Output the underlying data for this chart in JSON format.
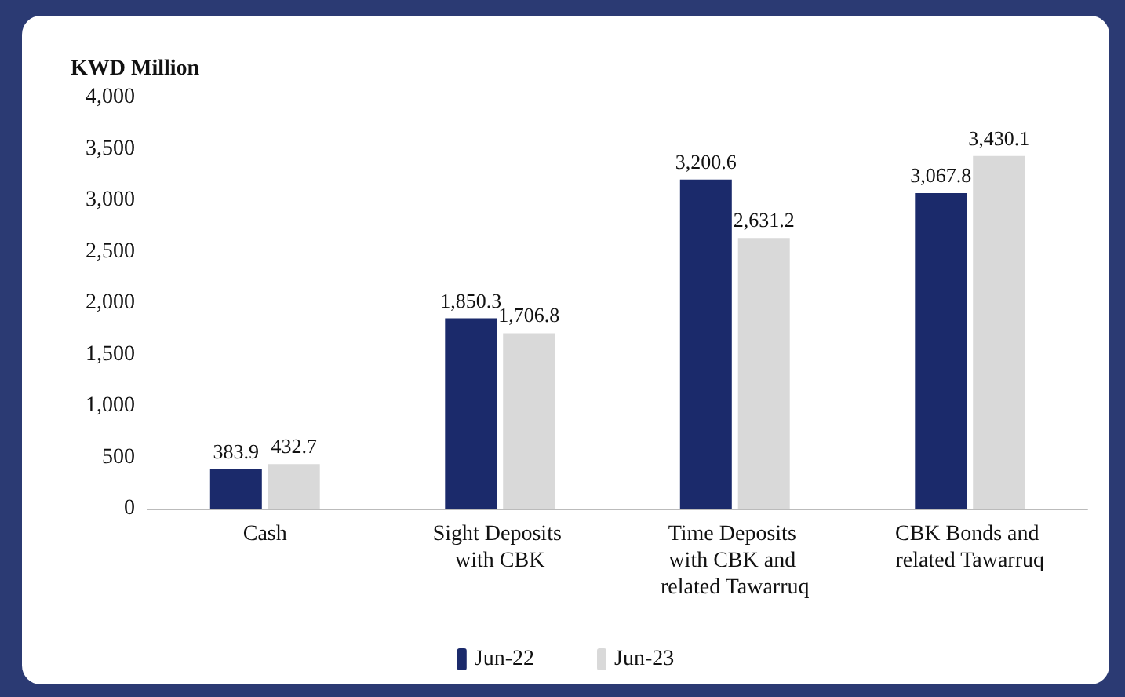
{
  "chart_data": {
    "type": "bar",
    "ylabel": "KWD Million",
    "categories": [
      "Cash",
      "Sight Deposits with CBK",
      "Time Deposits with CBK and related Tawarruq",
      "CBK Bonds and related Tawarruq"
    ],
    "series": [
      {
        "name": "Jun-22",
        "color": "#1b2a6b",
        "values": [
          383.9,
          1850.3,
          3200.6,
          3067.8
        ],
        "value_labels": [
          "383.9",
          "1,850.3",
          "3,200.6",
          "3,067.8"
        ]
      },
      {
        "name": "Jun-23",
        "color": "#d9d9d9",
        "values": [
          432.7,
          1706.8,
          2631.2,
          3430.1
        ],
        "value_labels": [
          "432.7",
          "1,706.8",
          "2,631.2",
          "3,430.1"
        ]
      }
    ],
    "ylim": [
      0,
      4000
    ],
    "yticks": [
      0,
      500,
      {
        "value": 1000,
        "label": "1,000"
      },
      {
        "value": 1500,
        "label": "1,500"
      },
      {
        "value": 2000,
        "label": "2,000"
      },
      {
        "value": 2500,
        "label": "2,500"
      },
      {
        "value": 3000,
        "label": "3,000"
      },
      {
        "value": 3500,
        "label": "3,500"
      },
      {
        "value": 4000,
        "label": "4,000"
      }
    ],
    "grid": false,
    "legend": "bottom"
  }
}
